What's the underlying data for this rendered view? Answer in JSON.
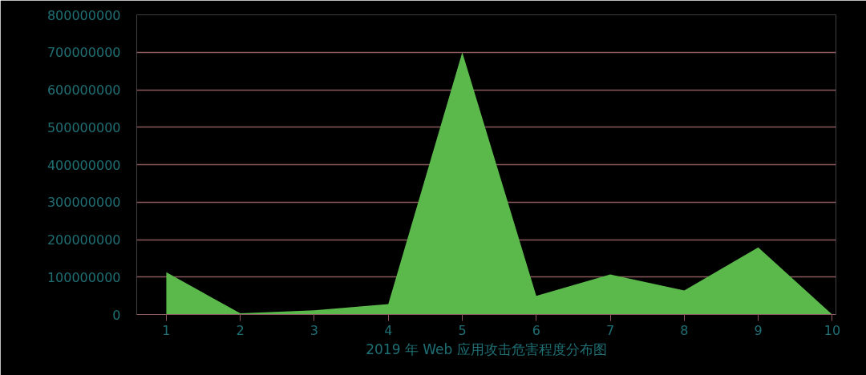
{
  "chart_data": {
    "type": "area",
    "xlabel": "2019 年 Web 应用攻击危害程度分布图",
    "x": [
      1,
      2,
      3,
      4,
      5,
      6,
      7,
      8,
      9,
      10
    ],
    "series": [
      {
        "color": "#5ab94a",
        "values": [
          113000000,
          3000000,
          11000000,
          28000000,
          700000000,
          50000000,
          107000000,
          64000000,
          179000000,
          0
        ]
      }
    ],
    "xlim": [
      0.6,
      10.05
    ],
    "xticks": [
      1,
      2,
      3,
      4,
      5,
      6,
      7,
      8,
      9,
      10
    ],
    "ylim": [
      0,
      800000000
    ],
    "yticks": [
      0,
      100000000,
      200000000,
      300000000,
      400000000,
      500000000,
      600000000,
      700000000,
      800000000
    ],
    "grid": "y"
  }
}
